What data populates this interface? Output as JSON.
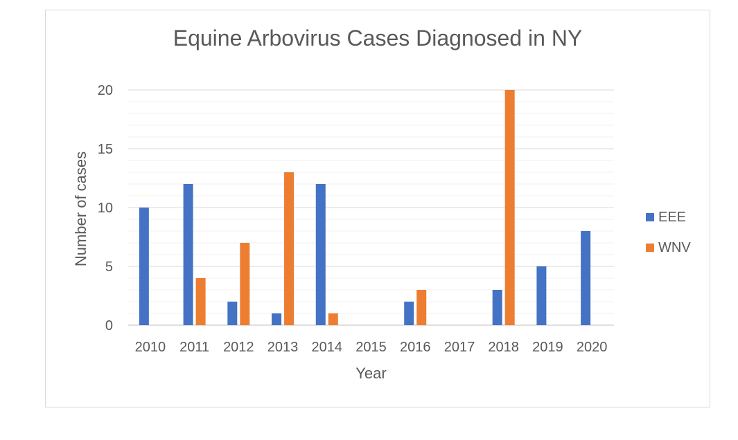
{
  "chart_data": {
    "type": "bar",
    "title": "Equine Arbovirus Cases Diagnosed in NY",
    "xlabel": "Year",
    "ylabel": "Number of cases",
    "categories": [
      "2010",
      "2011",
      "2012",
      "2013",
      "2014",
      "2015",
      "2016",
      "2017",
      "2018",
      "2019",
      "2020"
    ],
    "series": [
      {
        "name": "EEE",
        "color": "#4472c4",
        "values": [
          10,
          12,
          2,
          1,
          12,
          0,
          2,
          0,
          3,
          5,
          8
        ]
      },
      {
        "name": "WNV",
        "color": "#ed7d31",
        "values": [
          0,
          4,
          7,
          13,
          1,
          0,
          3,
          0,
          20,
          0,
          0
        ]
      }
    ],
    "ylim": [
      0,
      20
    ],
    "yticks": [
      "0",
      "5",
      "10",
      "15",
      "20"
    ],
    "grid": "major and minor horizontal",
    "legend_position": "right"
  }
}
